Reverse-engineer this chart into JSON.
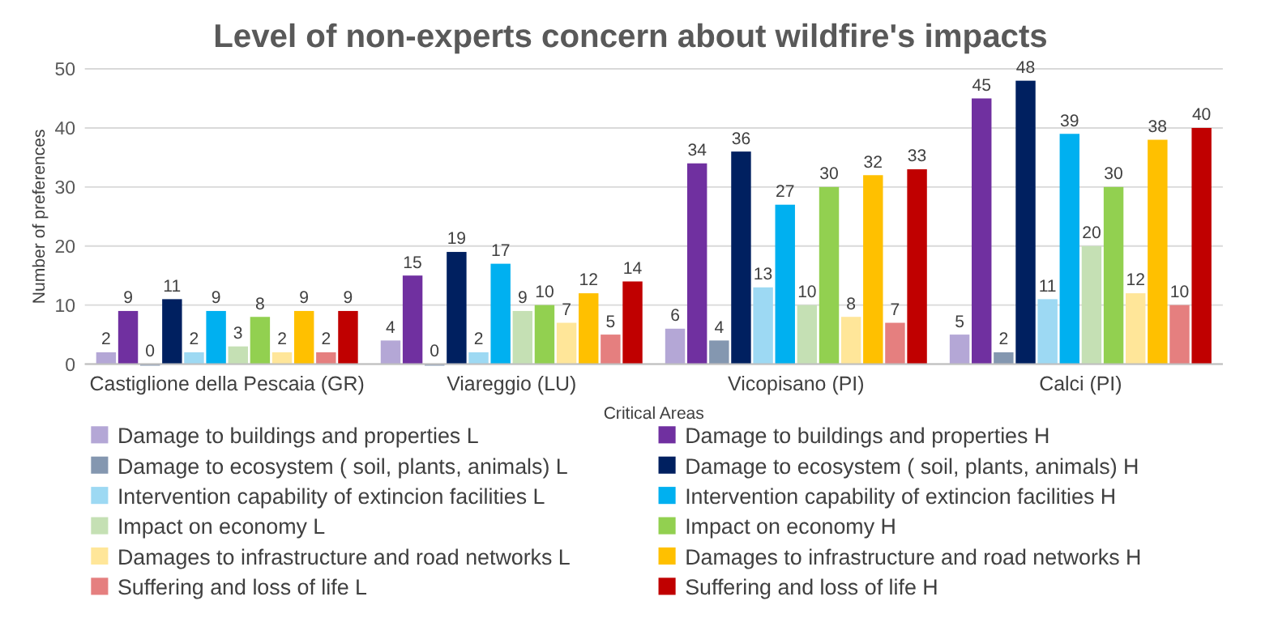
{
  "chart_data": {
    "type": "bar",
    "title": "Level of non-experts concern about wildfire's impacts",
    "xlabel": "Critical Areas",
    "ylabel": "Number of preferences",
    "categories": [
      "Castiglione della Pescaia (GR)",
      "Viareggio (LU)",
      "Vicopisano (PI)",
      "Calci (PI)"
    ],
    "series": [
      {
        "name": "Damage to buildings and properties L",
        "color": "#b4a7d6",
        "values": [
          2,
          4,
          6,
          5
        ]
      },
      {
        "name": "Damage to buildings and properties H",
        "color": "#7030a0",
        "values": [
          9,
          15,
          34,
          45
        ]
      },
      {
        "name": "Damage to ecosystem ( soil, plants, animals) L",
        "color": "#8497b0",
        "values": [
          0,
          0,
          4,
          2
        ]
      },
      {
        "name": "Damage to ecosystem ( soil, plants, animals) H",
        "color": "#002060",
        "values": [
          11,
          19,
          36,
          48
        ]
      },
      {
        "name": "Intervention capability of extincion facilities L",
        "color": "#9dd9f3",
        "values": [
          2,
          2,
          13,
          11
        ]
      },
      {
        "name": "Intervention capability of extincion facilities H",
        "color": "#00b0f0",
        "values": [
          9,
          17,
          27,
          39
        ]
      },
      {
        "name": "Impact on economy  L",
        "color": "#c5e0b4",
        "values": [
          3,
          9,
          10,
          20
        ]
      },
      {
        "name": "Impact on economy  H",
        "color": "#92d050",
        "values": [
          8,
          10,
          30,
          30
        ]
      },
      {
        "name": "Damages to infrastructure and road networks  L",
        "color": "#ffe699",
        "values": [
          2,
          7,
          8,
          12
        ]
      },
      {
        "name": "Damages to infrastructure and road networks  H",
        "color": "#ffc000",
        "values": [
          9,
          12,
          32,
          38
        ]
      },
      {
        "name": "Suffering and loss of life  L",
        "color": "#e57f7f",
        "values": [
          2,
          5,
          7,
          10
        ]
      },
      {
        "name": "Suffering and loss of life  H",
        "color": "#c00000",
        "values": [
          9,
          14,
          33,
          40
        ]
      }
    ],
    "ylim": [
      0,
      50
    ],
    "yticks": [
      0,
      10,
      20,
      30,
      40,
      50
    ],
    "grid": "y",
    "legend": "bottom",
    "data_labels": true
  }
}
